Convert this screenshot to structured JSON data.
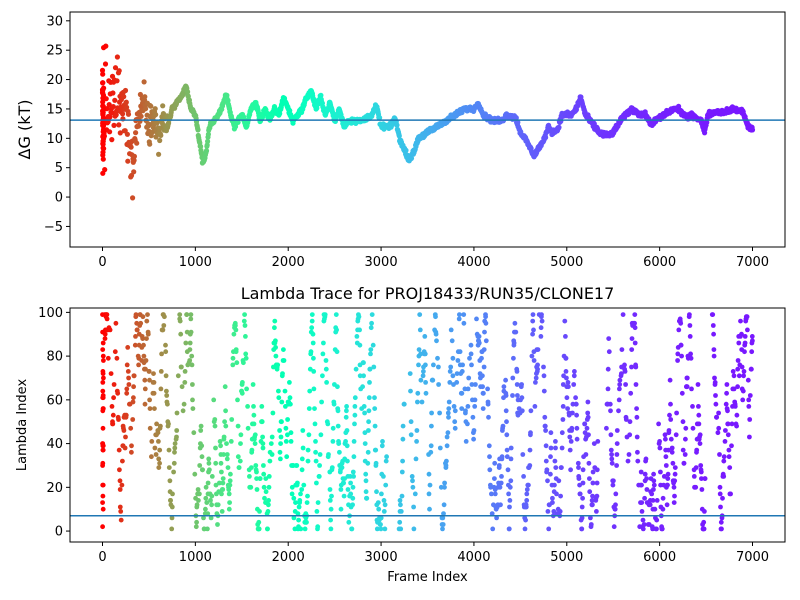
{
  "chart_data": [
    {
      "type": "scatter",
      "title": "",
      "xlabel": "",
      "ylabel": "ΔG (kT)",
      "xlim": [
        -350,
        7350
      ],
      "ylim": [
        -8.5,
        31.5
      ],
      "xticks": [
        0,
        1000,
        2000,
        3000,
        4000,
        5000,
        6000,
        7000
      ],
      "yticks": [
        -5,
        0,
        5,
        10,
        15,
        20,
        25,
        30
      ],
      "hline": 13.1,
      "hline_color": "#1f77b4",
      "colormap": "rainbow",
      "grid": false,
      "legend": "none",
      "frame_count": 7000,
      "anchors": [
        [
          20,
          13
        ],
        [
          60,
          15
        ],
        [
          100,
          14
        ],
        [
          130,
          16
        ],
        [
          160,
          18
        ],
        [
          200,
          14
        ],
        [
          250,
          15
        ],
        [
          300,
          10
        ],
        [
          330,
          4
        ],
        [
          360,
          12
        ],
        [
          400,
          14
        ],
        [
          450,
          17
        ],
        [
          500,
          12
        ],
        [
          550,
          15
        ],
        [
          600,
          10
        ],
        [
          650,
          13
        ],
        [
          700,
          12
        ],
        [
          750,
          15
        ],
        [
          800,
          16
        ],
        [
          850,
          17
        ],
        [
          900,
          19
        ],
        [
          950,
          15
        ],
        [
          1000,
          14
        ],
        [
          1050,
          9
        ],
        [
          1080,
          5.5
        ],
        [
          1120,
          8
        ],
        [
          1150,
          12
        ],
        [
          1200,
          13
        ],
        [
          1250,
          14
        ],
        [
          1300,
          16
        ],
        [
          1330,
          17.5
        ],
        [
          1380,
          14
        ],
        [
          1420,
          12
        ],
        [
          1450,
          13
        ],
        [
          1500,
          14
        ],
        [
          1550,
          12
        ],
        [
          1600,
          15
        ],
        [
          1650,
          16
        ],
        [
          1700,
          13
        ],
        [
          1750,
          15
        ],
        [
          1800,
          13
        ],
        [
          1850,
          15
        ],
        [
          1900,
          14
        ],
        [
          1950,
          17
        ],
        [
          2000,
          15
        ],
        [
          2050,
          13
        ],
        [
          2100,
          14
        ],
        [
          2150,
          15
        ],
        [
          2200,
          17
        ],
        [
          2250,
          18
        ],
        [
          2300,
          15
        ],
        [
          2350,
          17
        ],
        [
          2400,
          14
        ],
        [
          2450,
          16
        ],
        [
          2500,
          13
        ],
        [
          2550,
          15
        ],
        [
          2600,
          12
        ],
        [
          2650,
          13
        ],
        [
          2700,
          13
        ],
        [
          2800,
          13
        ],
        [
          2900,
          14
        ],
        [
          2950,
          15.5
        ],
        [
          3000,
          12
        ],
        [
          3100,
          12
        ],
        [
          3150,
          13.5
        ],
        [
          3200,
          10
        ],
        [
          3250,
          8
        ],
        [
          3300,
          6.5
        ],
        [
          3350,
          7.5
        ],
        [
          3400,
          10
        ],
        [
          3500,
          11
        ],
        [
          3600,
          12
        ],
        [
          3700,
          13
        ],
        [
          3800,
          14
        ],
        [
          3900,
          15
        ],
        [
          4000,
          15
        ],
        [
          4050,
          16
        ],
        [
          4100,
          14
        ],
        [
          4200,
          13
        ],
        [
          4300,
          13
        ],
        [
          4350,
          14
        ],
        [
          4450,
          13.5
        ],
        [
          4500,
          11
        ],
        [
          4550,
          10
        ],
        [
          4600,
          8.5
        ],
        [
          4650,
          7
        ],
        [
          4700,
          8.5
        ],
        [
          4750,
          9.5
        ],
        [
          4800,
          12
        ],
        [
          4850,
          11
        ],
        [
          4900,
          11.5
        ],
        [
          4950,
          14
        ],
        [
          5050,
          14
        ],
        [
          5100,
          15
        ],
        [
          5150,
          17
        ],
        [
          5200,
          14
        ],
        [
          5250,
          13
        ],
        [
          5300,
          12
        ],
        [
          5350,
          11
        ],
        [
          5450,
          10.5
        ],
        [
          5500,
          11
        ],
        [
          5600,
          13.5
        ],
        [
          5700,
          15
        ],
        [
          5800,
          14
        ],
        [
          5850,
          14
        ],
        [
          5900,
          12.5
        ],
        [
          5950,
          13
        ],
        [
          6050,
          14
        ],
        [
          6150,
          15
        ],
        [
          6200,
          15
        ],
        [
          6300,
          13.5
        ],
        [
          6350,
          14
        ],
        [
          6450,
          13
        ],
        [
          6480,
          11
        ],
        [
          6520,
          14
        ],
        [
          6600,
          14.5
        ],
        [
          6700,
          14.5
        ],
        [
          6800,
          15
        ],
        [
          6900,
          14.5
        ],
        [
          6950,
          12
        ],
        [
          7000,
          11.5
        ]
      ]
    },
    {
      "type": "scatter",
      "title": "Lambda Trace for PROJ18433/RUN35/CLONE17",
      "xlabel": "Frame Index",
      "ylabel": "Lambda Index",
      "xlim": [
        -350,
        7350
      ],
      "ylim": [
        -5,
        102
      ],
      "xticks": [
        0,
        1000,
        2000,
        3000,
        4000,
        5000,
        6000,
        7000
      ],
      "yticks": [
        0,
        20,
        40,
        60,
        80,
        100
      ],
      "hline": 7,
      "hline_color": "#1f77b4",
      "colormap": "rainbow",
      "grid": false,
      "legend": "none",
      "frame_count": 7000,
      "gaps": [
        [
          3060,
          3180
        ],
        [
          3250,
          3310
        ],
        [
          5340,
          5420
        ],
        [
          6490,
          6560
        ]
      ]
    }
  ]
}
